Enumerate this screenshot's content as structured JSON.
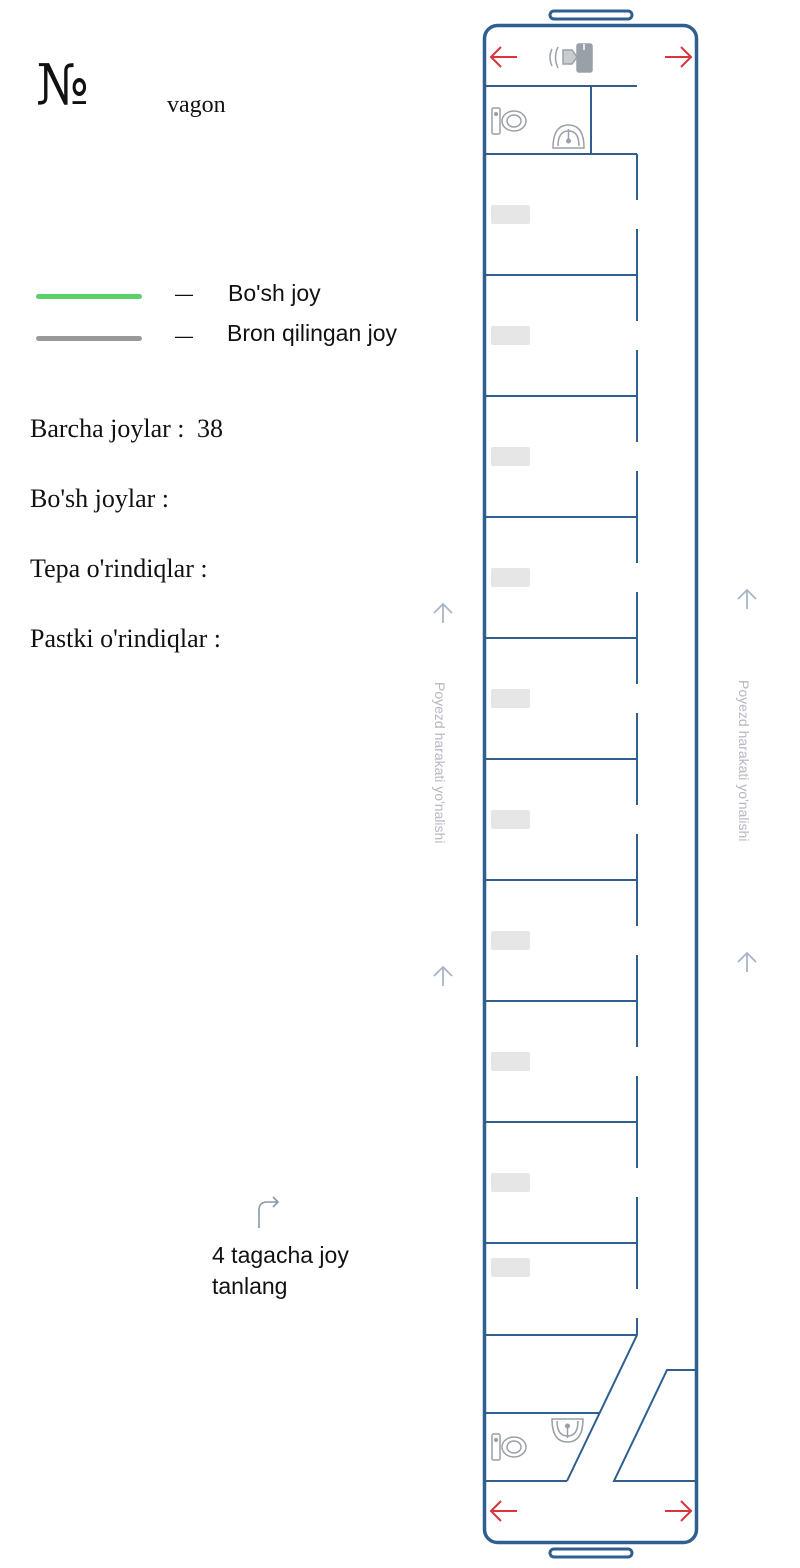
{
  "header": {
    "number_sign": "№",
    "vagon_label": "vagon"
  },
  "legend": {
    "items": [
      {
        "dash": "—",
        "label": "Bo'sh joy",
        "color": "#5bd16c"
      },
      {
        "dash": "—",
        "label": "Bron qilingan joy",
        "color": "#999999"
      }
    ]
  },
  "stats": {
    "total_label": "Barcha joylar :",
    "total_value": "38",
    "free_label": "Bo'sh joylar :",
    "upper_label": "Tepa o'rindiqlar :",
    "lower_label": "Pastki o'rindiqlar :"
  },
  "hint": {
    "line1": "4 tagacha joy",
    "line2": "tanlang"
  },
  "direction": {
    "label": "Poyezd harakati yo'nalishi"
  },
  "colors": {
    "car_outline": "#2f5f91",
    "exit_arrow": "#d9343b",
    "seat_placeholder": "#e6e6e6",
    "fixture_icon": "#9aa0a8",
    "direction_arrow": "#a8b4c8"
  },
  "icons": [
    "exit-arrow-icon",
    "toilet-icon",
    "sink-icon",
    "samovar-icon",
    "direction-arrow-icon",
    "turn-arrow-icon"
  ]
}
